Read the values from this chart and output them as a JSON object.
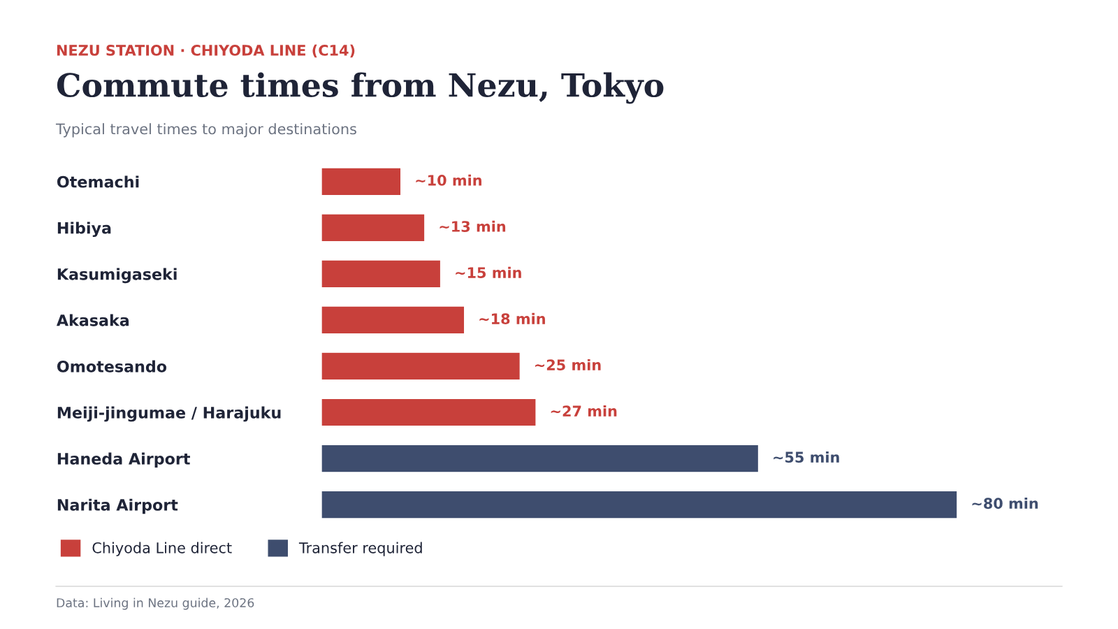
{
  "chart_data": {
    "type": "bar",
    "orientation": "horizontal",
    "subtitle": "NEZU STATION · CHIYODA LINE (C14)",
    "title": "Commute times from Nezu, Tokyo",
    "annotations": [
      "Typical travel times to major destinations",
      "Data: Living in Nezu guide, 2026"
    ],
    "categories": [
      "Otemachi",
      "Hibiya",
      "Kasumigaseki",
      "Akasaka",
      "Omotesando",
      "Meiji-jingumae / Harajuku",
      "Haneda Airport",
      "Narita Airport"
    ],
    "series": [
      {
        "name": "Chiyoda Line direct",
        "color": "#c8403b",
        "values": [
          10,
          13,
          15,
          18,
          25,
          27,
          null,
          null
        ],
        "value_labels": [
          "~10 min",
          "~13 min",
          "~15 min",
          "~18 min",
          "~25 min",
          "~27 min",
          null,
          null
        ]
      },
      {
        "name": "Transfer required",
        "color": "#3e4d6e",
        "values": [
          null,
          null,
          null,
          null,
          null,
          null,
          55,
          80
        ],
        "value_labels": [
          null,
          null,
          null,
          null,
          null,
          null,
          "~55 min",
          "~80 min"
        ]
      }
    ],
    "legend": "bottom left",
    "grid": false
  }
}
